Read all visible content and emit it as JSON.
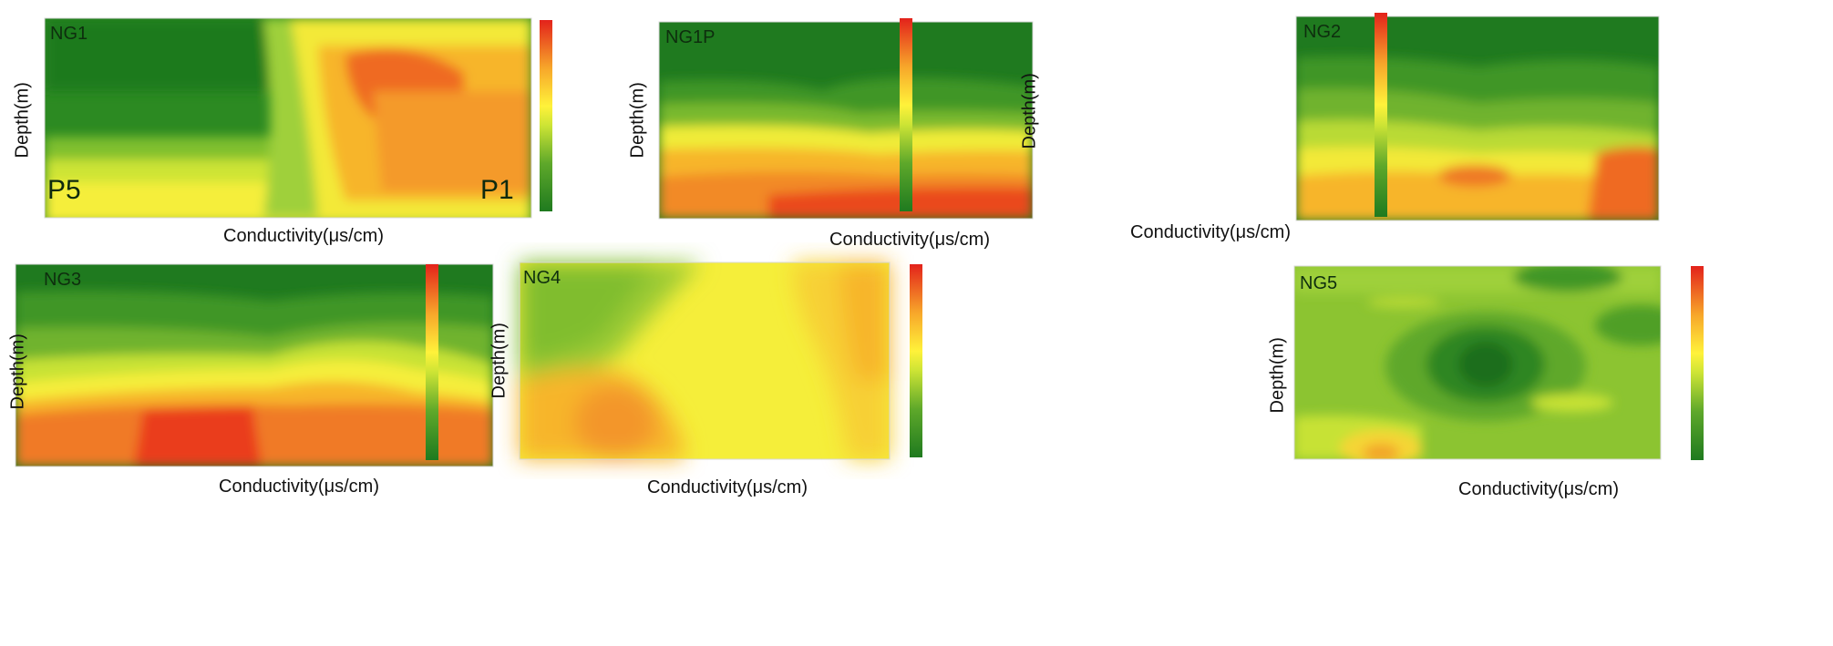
{
  "figure": {
    "panels": [
      {
        "id": "NG1",
        "title": "NG1",
        "xlabel": "Conductivity(μs/cm)",
        "ylabel": "Depth(m)",
        "left_well": "P5",
        "right_well": "P1"
      },
      {
        "id": "NG1P",
        "title": "NG1P",
        "xlabel": "Conductivity(μs/cm)",
        "ylabel": "Depth(m)"
      },
      {
        "id": "NG2",
        "title": "NG2",
        "xlabel": "Conductivity(μs/cm)",
        "ylabel": "Depth(m)"
      },
      {
        "id": "NG3",
        "title": "NG3",
        "xlabel": "Conductivity(μs/cm)",
        "ylabel": "Depth(m)"
      },
      {
        "id": "NG4",
        "title": "NG4",
        "xlabel": "Conductivity(μs/cm)",
        "ylabel": "Depth(m)"
      },
      {
        "id": "NG5",
        "title": "NG5",
        "xlabel": "Conductivity(μs/cm)",
        "ylabel": "Depth(m)"
      }
    ]
  },
  "chart_data": [
    {
      "type": "heatmap",
      "title": "NG1",
      "xlabel": "Conductivity(μs/cm)",
      "ylabel": "Depth(m)",
      "colormap": "green-yellow-red",
      "colors": [
        "#1f7a1f",
        "#f0f02a",
        "#e83a1e"
      ]
    },
    {
      "type": "heatmap",
      "title": "NG1P",
      "xlabel": "Conductivity(μs/cm)",
      "ylabel": "Depth(m)",
      "colormap": "green-yellow-red",
      "colors": [
        "#1f7a1f",
        "#f0f02a",
        "#e83a1e"
      ]
    },
    {
      "type": "heatmap",
      "title": "NG2",
      "xlabel": "Conductivity(μs/cm)",
      "ylabel": "Depth(m)",
      "colormap": "green-yellow-red",
      "colors": [
        "#1f7a1f",
        "#f0f02a",
        "#e83a1e"
      ]
    },
    {
      "type": "heatmap",
      "title": "NG3",
      "xlabel": "Conductivity(μs/cm)",
      "ylabel": "Depth(m)",
      "colormap": "green-yellow-red",
      "colors": [
        "#1f7a1f",
        "#f0f02a",
        "#e83a1e"
      ]
    },
    {
      "type": "heatmap",
      "title": "NG4",
      "xlabel": "Conductivity(μs/cm)",
      "ylabel": "Depth(m)",
      "colormap": "green-yellow-red",
      "colors": [
        "#1f7a1f",
        "#f0f02a",
        "#e83a1e"
      ]
    },
    {
      "type": "heatmap",
      "title": "NG5",
      "xlabel": "Conductivity(μs/cm)",
      "ylabel": "Depth(m)",
      "colormap": "green-yellow-red",
      "colors": [
        "#1f7a1f",
        "#f0f02a",
        "#e83a1e"
      ]
    }
  ]
}
